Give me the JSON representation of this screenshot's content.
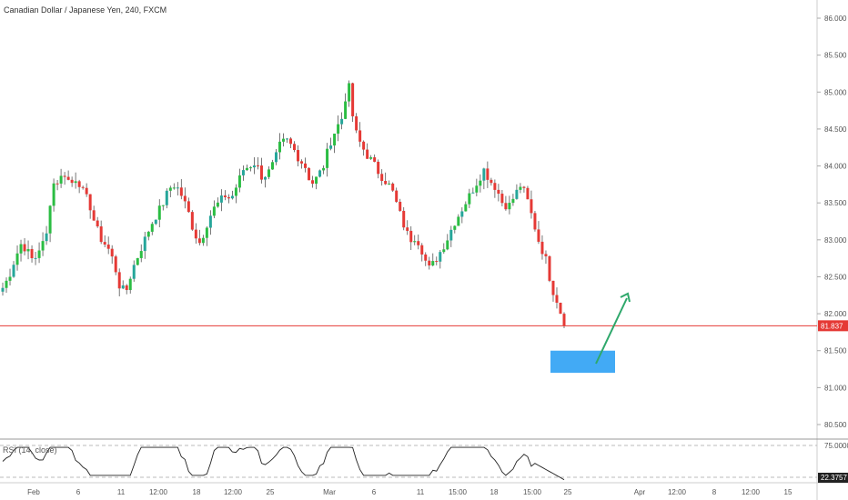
{
  "header": {
    "title": "Canadian Dollar / Japanese Yen, 240, FXCM"
  },
  "colors": {
    "up": "#26a69a",
    "up_alt": "#2bbd43",
    "down": "#e53935",
    "price_line": "#e53935",
    "zone": "#42aaf5",
    "arrow": "#2ea86b",
    "axis_text": "#555555",
    "rsi_line": "#222222",
    "rsi_band": "#bbbbbb"
  },
  "price_axis": {
    "ticks": [
      "86.000",
      "85.500",
      "85.000",
      "84.500",
      "84.000",
      "83.500",
      "83.000",
      "82.500",
      "82.000",
      "81.500",
      "81.000",
      "80.500"
    ],
    "last_price": "81.837"
  },
  "rsi": {
    "label": "RSI (14, close)",
    "upper": "75.0000",
    "last": "22.3757"
  },
  "time_axis": {
    "labels": [
      "Feb",
      "6",
      "11",
      "12:00",
      "18",
      "12:00",
      "25",
      "Mar",
      "6",
      "11",
      "15:00",
      "18",
      "15:00",
      "25",
      "Apr",
      "12:00",
      "8",
      "12:00",
      "15"
    ]
  },
  "chart_data": {
    "type": "candlestick",
    "title": "Canadian Dollar / Japanese Yen, 240, FXCM",
    "ylim": [
      80.3,
      86.2
    ],
    "close_path": [
      82.35,
      82.5,
      82.75,
      82.95,
      82.85,
      82.7,
      82.9,
      83.0,
      83.75,
      83.8,
      83.9,
      83.75,
      83.85,
      83.65,
      83.5,
      83.2,
      83.0,
      82.9,
      82.7,
      82.35,
      82.3,
      82.6,
      82.8,
      83.0,
      83.2,
      83.35,
      83.5,
      83.7,
      83.75,
      83.6,
      83.4,
      83.1,
      82.95,
      83.2,
      83.4,
      83.5,
      83.6,
      83.55,
      83.75,
      83.95,
      84.0,
      84.05,
      83.85,
      83.9,
      84.05,
      84.3,
      84.35,
      84.25,
      84.1,
      84.0,
      83.75,
      83.85,
      84.0,
      84.3,
      84.5,
      84.65,
      85.15,
      84.5,
      84.3,
      84.15,
      84.05,
      83.9,
      83.8,
      83.7,
      83.45,
      83.2,
      83.0,
      83.05,
      82.85,
      82.6,
      82.7,
      82.85,
      83.0,
      83.2,
      83.35,
      83.5,
      83.65,
      83.8,
      83.95,
      83.8,
      83.7,
      83.5,
      83.45,
      83.6,
      83.75,
      83.55,
      83.25,
      82.95,
      82.75,
      82.35,
      82.15,
      81.84
    ],
    "price_levels": {
      "last": 81.837
    },
    "annotations": {
      "zone": {
        "from": 81.2,
        "to": 81.5,
        "label": ""
      },
      "arrow": {
        "direction": "up"
      }
    },
    "rsi": {
      "levels": [
        75,
        25
      ],
      "values_hint": "oscillates between roughly 28 and 72, ending at 22.3757"
    }
  }
}
